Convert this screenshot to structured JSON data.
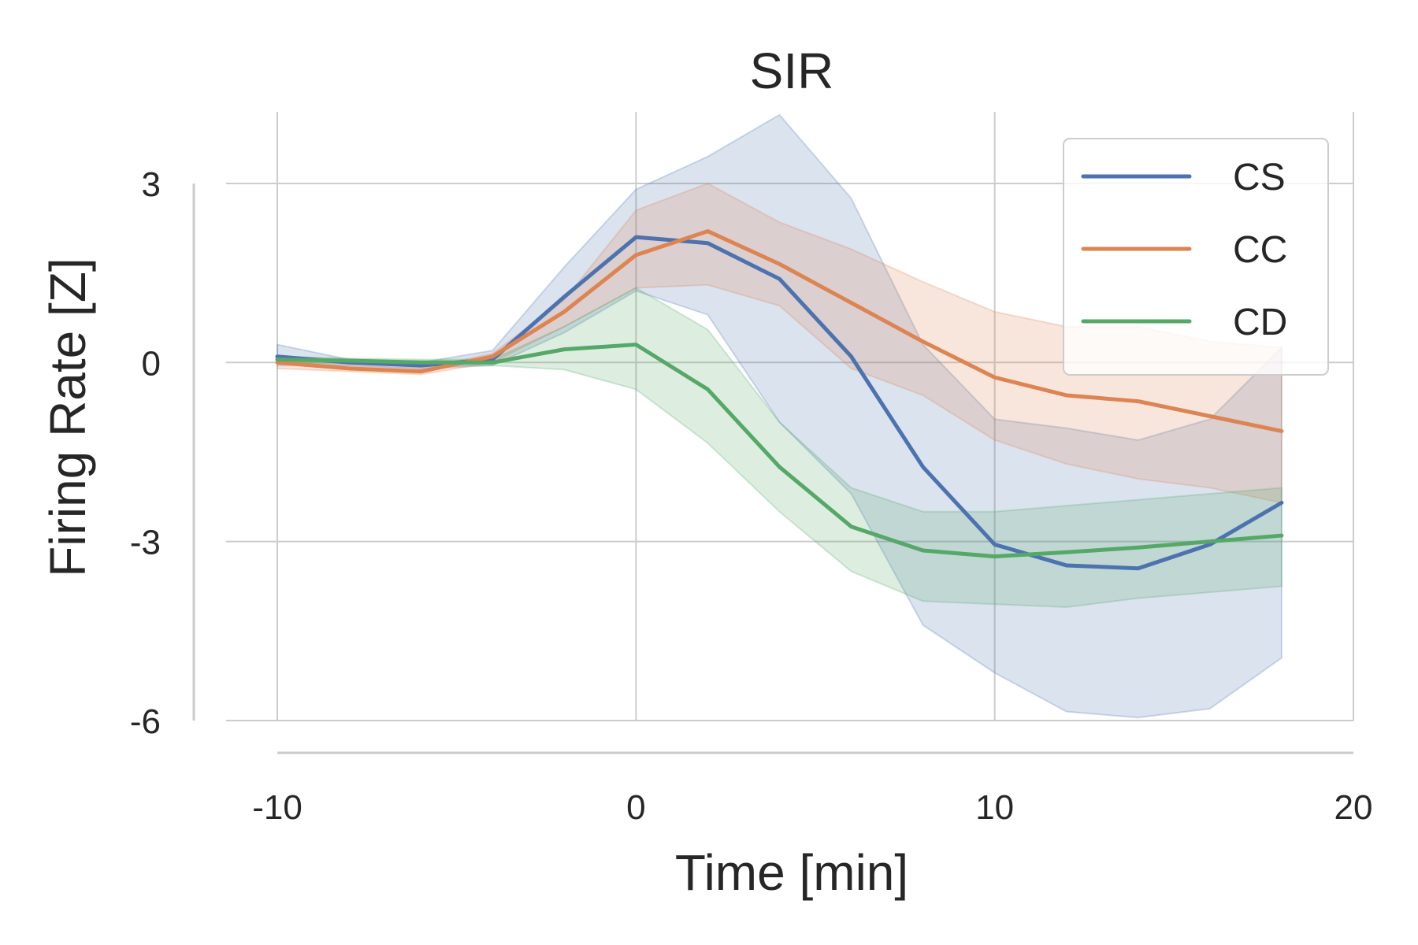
{
  "chart_data": {
    "type": "line",
    "title": "SIR",
    "xlabel": "Time [min]",
    "ylabel": "Firing Rate [Z]",
    "xlim": [
      -10,
      20
    ],
    "ylim": [
      -6,
      4.2
    ],
    "xticks": [
      -10,
      0,
      10,
      20
    ],
    "yticks": [
      -6,
      -3,
      0,
      3
    ],
    "xtick_labels": [
      "-10",
      "0",
      "10",
      "20"
    ],
    "ytick_labels": [
      "-6",
      "-3",
      "0",
      "3"
    ],
    "grid": true,
    "legend_position": "top-right",
    "x": [
      -10,
      -8,
      -6,
      -4,
      -2,
      0,
      2,
      4,
      6,
      8,
      10,
      12,
      14,
      16,
      18
    ],
    "series": [
      {
        "name": "CS",
        "color": "#4c72b0",
        "values": [
          0.1,
          0.0,
          -0.05,
          0.05,
          1.1,
          2.1,
          2.0,
          1.4,
          0.1,
          -1.75,
          -3.05,
          -3.4,
          -3.45,
          -3.05,
          -2.35
        ],
        "lower": [
          -0.05,
          -0.05,
          -0.1,
          -0.05,
          0.5,
          1.2,
          0.8,
          -1.0,
          -2.2,
          -4.4,
          -5.2,
          -5.85,
          -5.95,
          -5.8,
          -4.95
        ],
        "upper": [
          0.3,
          0.05,
          0.0,
          0.2,
          1.6,
          2.9,
          3.45,
          4.15,
          2.75,
          0.3,
          -0.95,
          -1.1,
          -1.3,
          -0.95,
          0.25
        ]
      },
      {
        "name": "CC",
        "color": "#dd8452",
        "values": [
          0.0,
          -0.1,
          -0.15,
          0.1,
          0.85,
          1.8,
          2.2,
          1.65,
          1.0,
          0.35,
          -0.25,
          -0.55,
          -0.65,
          -0.9,
          -1.15
        ],
        "lower": [
          -0.1,
          -0.15,
          -0.2,
          0.0,
          0.6,
          1.25,
          1.3,
          0.95,
          -0.1,
          -0.55,
          -1.3,
          -1.7,
          -1.95,
          -2.1,
          -2.35
        ],
        "upper": [
          0.05,
          -0.05,
          -0.1,
          0.15,
          1.05,
          2.55,
          3.0,
          2.35,
          1.9,
          1.35,
          0.85,
          0.6,
          0.6,
          0.35,
          0.25
        ]
      },
      {
        "name": "CD",
        "color": "#55a868",
        "values": [
          0.05,
          0.03,
          0.0,
          0.0,
          0.22,
          0.3,
          -0.45,
          -1.75,
          -2.75,
          -3.15,
          -3.25,
          -3.18,
          -3.1,
          -3.0,
          -2.9
        ],
        "lower": [
          0.0,
          -0.02,
          -0.05,
          -0.05,
          -0.12,
          -0.45,
          -1.35,
          -2.5,
          -3.5,
          -4.0,
          -4.05,
          -4.1,
          -3.95,
          -3.85,
          -3.75
        ],
        "upper": [
          0.1,
          0.07,
          0.05,
          0.05,
          0.6,
          1.25,
          0.55,
          -1.0,
          -2.1,
          -2.5,
          -2.5,
          -2.4,
          -2.3,
          -2.2,
          -2.1
        ]
      }
    ]
  }
}
